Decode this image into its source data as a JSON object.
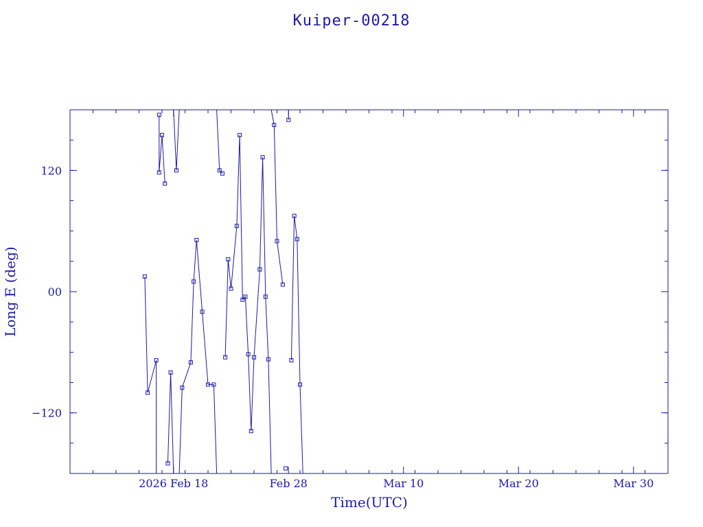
{
  "chart_data": {
    "type": "line",
    "title": "Kuiper-00218",
    "xlabel": "Time(UTC)",
    "ylabel": "Long E (deg)",
    "xlim": [
      "2026-02-09T00:00",
      "2026-04-02T00:00"
    ],
    "ylim": [
      -180,
      180
    ],
    "x_ticks": [
      {
        "value": "2026-02-18T00:00",
        "label": "2026 Feb 18"
      },
      {
        "value": "2026-02-28T00:00",
        "label": "Feb 28"
      },
      {
        "value": "2026-03-10T00:00",
        "label": "Mar 10"
      },
      {
        "value": "2026-03-20T00:00",
        "label": "Mar 20"
      },
      {
        "value": "2026-03-30T00:00",
        "label": "Mar 30"
      }
    ],
    "y_ticks": [
      {
        "value": 120,
        "label": "120"
      },
      {
        "value": 0,
        "label": "00"
      },
      {
        "value": -120,
        "label": "−120"
      }
    ],
    "grid": false,
    "line_color": "#1a1aa6",
    "series": [
      {
        "values": [
          [
            "2026-02-15T12:00",
            15
          ],
          [
            "2026-02-15T18:00",
            -100
          ],
          [
            "2026-02-16T12:00",
            -68
          ],
          [
            "2026-02-16T12:00",
            -180
          ],
          [
            "2026-02-16T18:00",
            175
          ],
          [
            "2026-02-16T18:00",
            118
          ],
          [
            "2026-02-17T00:00",
            155
          ],
          [
            "2026-02-17T06:00",
            107
          ],
          [
            "2026-02-17T12:00",
            -170
          ],
          [
            "2026-02-17T18:00",
            -80
          ],
          [
            "2026-02-18T00:00",
            -180
          ],
          [
            "2026-02-18T00:00",
            180
          ],
          [
            "2026-02-18T06:00",
            120
          ],
          [
            "2026-02-18T12:00",
            180
          ],
          [
            "2026-02-18T12:00",
            -180
          ],
          [
            "2026-02-18T18:00",
            -95
          ],
          [
            "2026-02-19T12:00",
            -70
          ],
          [
            "2026-02-19T18:00",
            10
          ],
          [
            "2026-02-20T00:00",
            51
          ],
          [
            "2026-02-20T12:00",
            -20
          ],
          [
            "2026-02-21T00:00",
            -92
          ],
          [
            "2026-02-21T12:00",
            -92
          ],
          [
            "2026-02-21T18:00",
            -180
          ],
          [
            "2026-02-21T18:00",
            180
          ],
          [
            "2026-02-22T00:00",
            120
          ],
          [
            "2026-02-22T06:00",
            117
          ],
          [
            "2026-02-22T12:00",
            -65
          ],
          [
            "2026-02-22T18:00",
            32
          ],
          [
            "2026-02-23T00:00",
            3
          ],
          [
            "2026-02-23T12:00",
            65
          ],
          [
            "2026-02-23T18:00",
            155
          ],
          [
            "2026-02-24T00:00",
            -8
          ],
          [
            "2026-02-24T06:00",
            -5
          ],
          [
            "2026-02-24T12:00",
            -62
          ],
          [
            "2026-02-24T18:00",
            -138
          ],
          [
            "2026-02-25T00:00",
            -65
          ],
          [
            "2026-02-25T12:00",
            22
          ],
          [
            "2026-02-25T18:00",
            133
          ],
          [
            "2026-02-26T00:00",
            -5
          ],
          [
            "2026-02-26T06:00",
            -67
          ],
          [
            "2026-02-26T12:00",
            -180
          ],
          [
            "2026-02-26T12:00",
            180
          ],
          [
            "2026-02-26T18:00",
            165
          ],
          [
            "2026-02-27T00:00",
            50
          ],
          [
            "2026-02-27T12:00",
            7
          ],
          [
            "2026-02-27T18:00",
            -175
          ],
          [
            "2026-02-28T00:00",
            180
          ],
          [
            "2026-02-28T00:00",
            170
          ],
          [
            "2026-02-28T06:00",
            -68
          ],
          [
            "2026-02-28T12:00",
            75
          ],
          [
            "2026-02-28T18:00",
            52
          ],
          [
            "2026-02-29T00:00",
            -92
          ],
          [
            "2026-02-29T06:00",
            -180
          ]
        ]
      }
    ]
  }
}
